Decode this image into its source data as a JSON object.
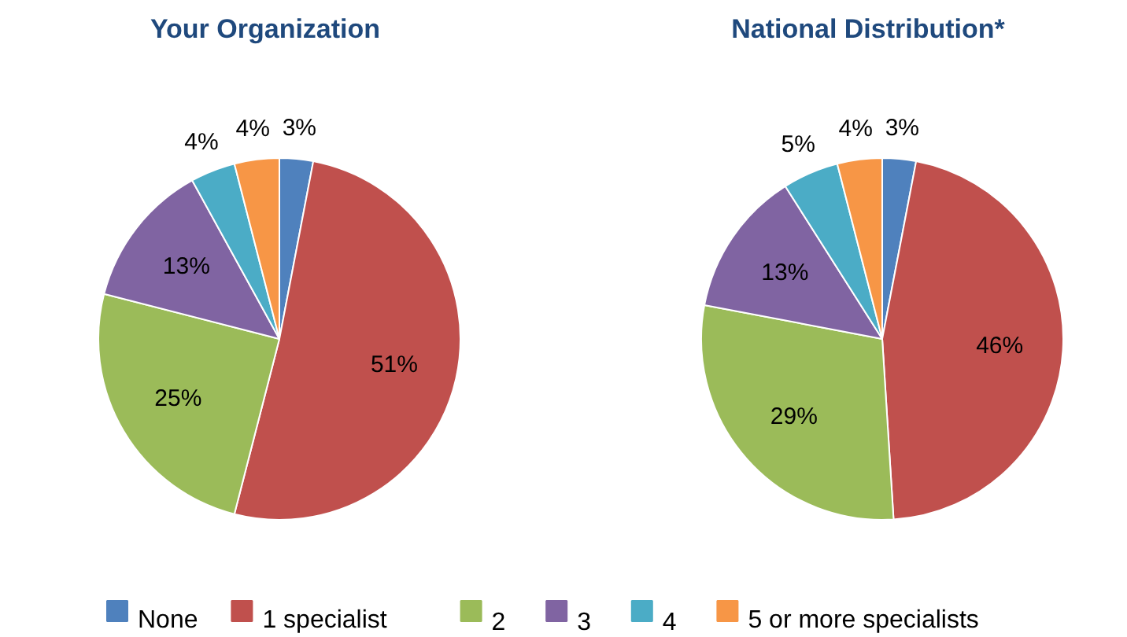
{
  "chart_data": [
    {
      "type": "pie",
      "title": "Your Organization",
      "categories": [
        "None",
        "1 specialist",
        "2",
        "3",
        "4",
        "5 or more specialists"
      ],
      "values": [
        3,
        51,
        25,
        13,
        4,
        4
      ],
      "value_labels": [
        "3%",
        "51%",
        "25%",
        "13%",
        "4%",
        "4%"
      ],
      "colors": [
        "#4f81bd",
        "#c0504d",
        "#9bbb59",
        "#8064a2",
        "#4bacc6",
        "#f79646"
      ],
      "legend": "bottom"
    },
    {
      "type": "pie",
      "title": "National Distribution*",
      "categories": [
        null,
        null,
        null,
        null,
        null,
        null
      ],
      "values": [
        3,
        46,
        29,
        13,
        5,
        4
      ],
      "value_labels": [
        "3%",
        "46%",
        "29%",
        "13%",
        "5%",
        "4%"
      ],
      "colors": [
        "#4f81bd",
        "#c0504d",
        "#9bbb59",
        "#8064a2",
        "#4bacc6",
        "#f79646"
      ]
    }
  ]
}
